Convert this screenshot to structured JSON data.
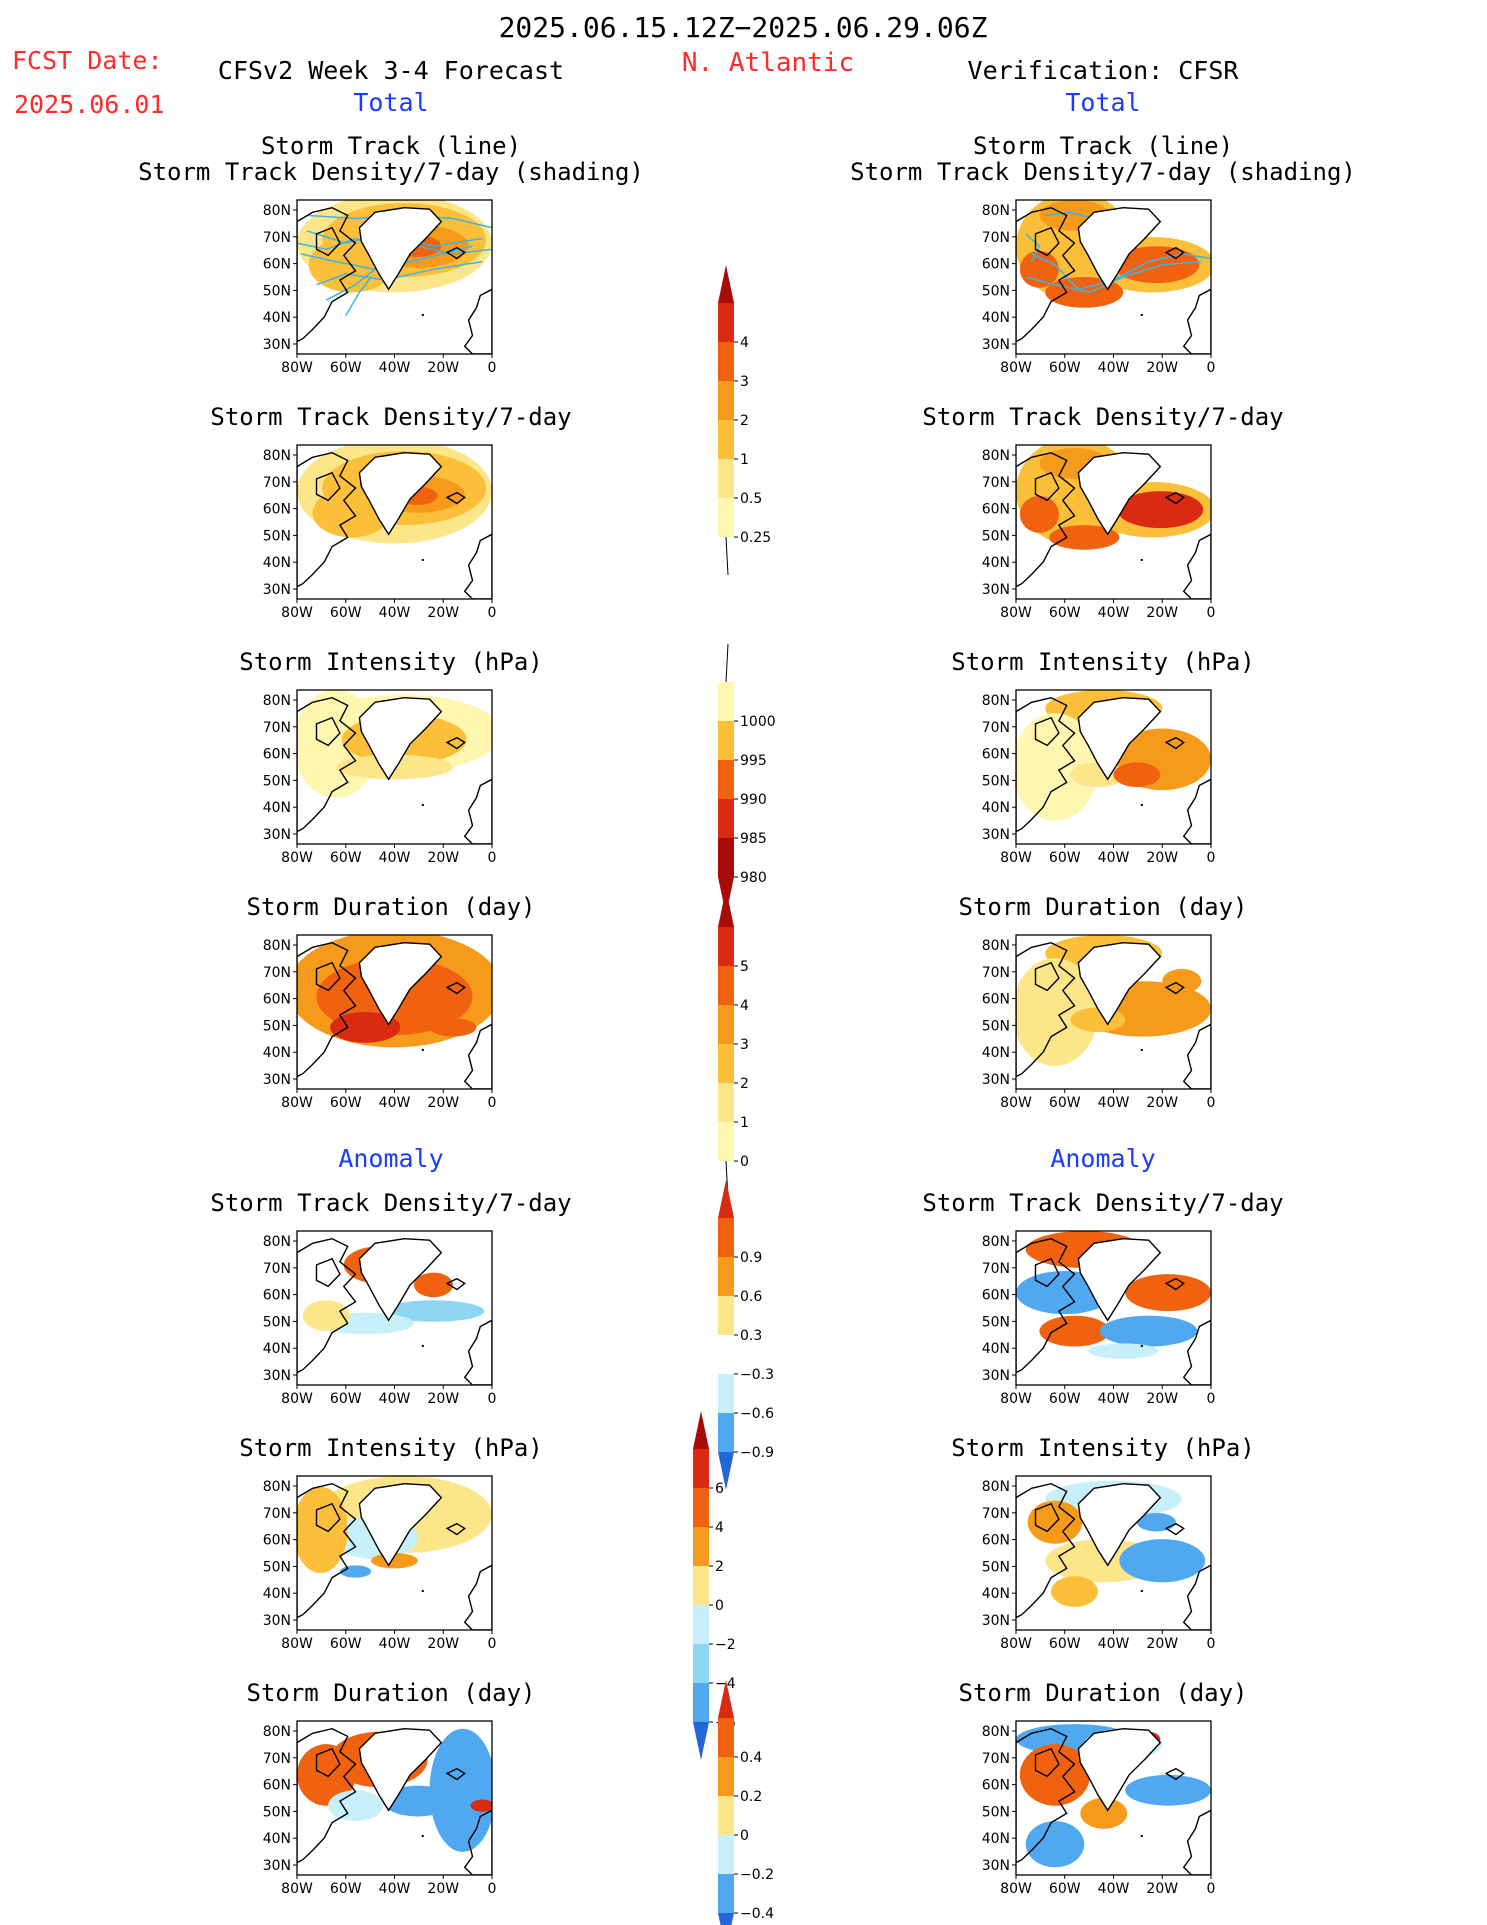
{
  "header": {
    "date_range": "2025.06.15.12Z−2025.06.29.06Z",
    "fcst_label": "FCST Date:",
    "fcst_date": "2025.06.01",
    "model_title": "CFSv2 Week 3-4 Forecast",
    "region": "N. Atlantic",
    "verification": "Verification: CFSR"
  },
  "sections": {
    "total": "Total",
    "anomaly": "Anomaly"
  },
  "titles": {
    "track_line": "Storm Track (line)",
    "track_shading": "Storm Track Density/7-day (shading)",
    "density": "Storm Track Density/7-day",
    "intensity": "Storm Intensity (hPa)",
    "duration": "Storm Duration (day)"
  },
  "axes": {
    "lat_labels": [
      "80N",
      "70N",
      "60N",
      "50N",
      "40N",
      "30N"
    ],
    "lon_labels": [
      "80W",
      "60W",
      "40W",
      "20W",
      "0"
    ]
  },
  "colorbars": {
    "density_total": [
      "4",
      "3",
      "2",
      "1",
      "0.5",
      "0.25"
    ],
    "intensity_total": [
      "1000",
      "995",
      "990",
      "985",
      "980"
    ],
    "duration_total": [
      "5",
      "4",
      "3",
      "2",
      "1",
      "0"
    ],
    "density_anom": [
      "0.9",
      "0.6",
      "0.3",
      "−0.3",
      "−0.6",
      "−0.9"
    ],
    "intensity_anom": [
      "6",
      "4",
      "2",
      "0",
      "−2",
      "−4",
      "−6"
    ],
    "duration_anom": [
      "0.4",
      "0.2",
      "0",
      "−0.2",
      "−0.4"
    ]
  },
  "colors": {
    "positive": [
      "#fff6b0",
      "#fde68a",
      "#fbbf3a",
      "#f59a1a",
      "#f0620f",
      "#d92a12",
      "#a80c08"
    ],
    "negative": [
      "#c8f0fb",
      "#8fd6f5",
      "#4fa8f0",
      "#2366d8",
      "#1740b0"
    ],
    "text_red": "#ff2a2a",
    "text_blue": "#1a3cff",
    "track_line": "#3cb4e6"
  }
}
